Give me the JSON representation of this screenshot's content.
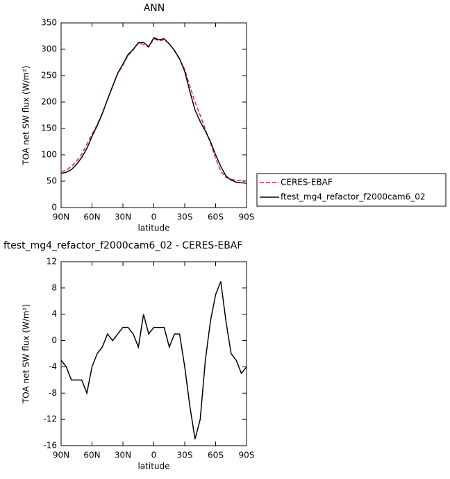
{
  "chart_data": [
    {
      "type": "line",
      "title": "ANN",
      "xlabel": "latitude",
      "ylabel": "TOA net SW flux (W/m²)",
      "x": [
        90,
        85,
        80,
        75,
        70,
        65,
        60,
        55,
        50,
        45,
        40,
        35,
        30,
        25,
        20,
        15,
        10,
        5,
        0,
        -5,
        -10,
        -15,
        -20,
        -25,
        -30,
        -35,
        -40,
        -45,
        -50,
        -55,
        -60,
        -65,
        -70,
        -75,
        -80,
        -85,
        -90
      ],
      "xlim": [
        90,
        -90
      ],
      "xticks": [
        {
          "value": 90,
          "label": "90N"
        },
        {
          "value": 60,
          "label": "60N"
        },
        {
          "value": 30,
          "label": "30N"
        },
        0,
        {
          "value": -30,
          "label": "30S"
        },
        {
          "value": -60,
          "label": "60S"
        },
        {
          "value": -90,
          "label": "90S"
        }
      ],
      "ylim": [
        0,
        350
      ],
      "yticks": [
        0,
        50,
        100,
        150,
        200,
        250,
        300,
        350
      ],
      "legend": "right",
      "series": [
        {
          "name": "CERES-EBAF",
          "color": "#e8262b",
          "dash": true,
          "values": [
            68,
            71,
            78,
            88,
            101,
            120,
            139,
            157,
            179,
            204,
            230,
            254,
            270,
            288,
            299,
            313,
            309,
            304,
            320,
            316,
            318,
            311,
            297,
            281,
            262,
            230,
            200,
            175,
            148,
            122,
            93,
            69,
            57,
            54,
            51,
            52,
            50
          ]
        },
        {
          "name": "ftest_mg4_refactor_f2000cam6_02",
          "color": "#000000",
          "dash": false,
          "values": [
            65,
            67,
            72,
            82,
            95,
            112,
            135,
            155,
            178,
            205,
            230,
            255,
            272,
            290,
            300,
            312,
            313,
            305,
            322,
            318,
            320,
            310,
            298,
            282,
            258,
            220,
            185,
            163,
            145,
            125,
            100,
            78,
            60,
            52,
            48,
            47,
            46
          ]
        }
      ]
    },
    {
      "type": "line",
      "title": "ftest_mg4_refactor_f2000cam6_02 - CERES-EBAF",
      "xlabel": "latitude",
      "ylabel": "TOA net SW flux (W/m²)",
      "x": [
        90,
        85,
        80,
        75,
        70,
        65,
        60,
        55,
        50,
        45,
        40,
        35,
        30,
        25,
        20,
        15,
        10,
        5,
        0,
        -5,
        -10,
        -15,
        -20,
        -25,
        -30,
        -35,
        -40,
        -45,
        -50,
        -55,
        -60,
        -65,
        -70,
        -75,
        -80,
        -85,
        -90
      ],
      "xlim": [
        90,
        -90
      ],
      "xticks": [
        {
          "value": 90,
          "label": "90N"
        },
        {
          "value": 60,
          "label": "60N"
        },
        {
          "value": 30,
          "label": "30N"
        },
        0,
        {
          "value": -30,
          "label": "30S"
        },
        {
          "value": -60,
          "label": "60S"
        },
        {
          "value": -90,
          "label": "90S"
        }
      ],
      "ylim": [
        -16,
        12
      ],
      "yticks": [
        -16,
        -12,
        -8,
        -4,
        0,
        4,
        8,
        12
      ],
      "series": [
        {
          "color": "#000000",
          "dash": false,
          "values": [
            -3,
            -4,
            -6,
            -6,
            -6,
            -8,
            -4,
            -2,
            -1,
            1,
            0,
            1,
            2,
            2,
            1,
            -1,
            4,
            1,
            2,
            2,
            2,
            -1,
            1,
            1,
            -4,
            -10,
            -15,
            -12,
            -3,
            3,
            7,
            9,
            3,
            -2,
            -3,
            -5,
            -4
          ]
        }
      ]
    }
  ]
}
